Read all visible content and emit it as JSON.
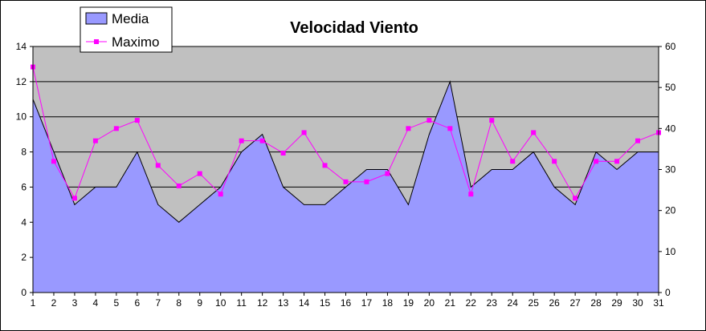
{
  "chart_data": {
    "type": "area",
    "title": "Velocidad Viento",
    "xlabel": "",
    "ylabel": "",
    "x": [
      1,
      2,
      3,
      4,
      5,
      6,
      7,
      8,
      9,
      10,
      11,
      12,
      13,
      14,
      15,
      16,
      17,
      18,
      19,
      20,
      21,
      22,
      23,
      24,
      25,
      26,
      27,
      28,
      29,
      30,
      31
    ],
    "y_left_range": [
      0,
      14
    ],
    "y_left_ticks": [
      0,
      2,
      4,
      6,
      8,
      10,
      12,
      14
    ],
    "y_right_range": [
      0,
      60
    ],
    "y_right_ticks": [
      0,
      10,
      20,
      30,
      40,
      50,
      60
    ],
    "grid": true,
    "legend_position": "top-left",
    "plot_background": "#c0c0c0",
    "series": [
      {
        "name": "Media",
        "type": "area",
        "axis": "left",
        "color": "#9999ff",
        "values": [
          11,
          8,
          5,
          6,
          6,
          8,
          5,
          4,
          5,
          6,
          8,
          9,
          6,
          5,
          5,
          6,
          7,
          7,
          5,
          9,
          12,
          6,
          7,
          7,
          8,
          6,
          5,
          8,
          7,
          8,
          8
        ]
      },
      {
        "name": "Maximo",
        "type": "line",
        "axis": "right",
        "color": "#ff00ff",
        "marker": "square",
        "values": [
          55,
          32,
          23,
          37,
          40,
          42,
          31,
          26,
          29,
          24,
          37,
          37,
          34,
          39,
          31,
          27,
          27,
          29,
          40,
          42,
          40,
          24,
          42,
          32,
          39,
          32,
          23,
          32,
          32,
          37,
          39
        ]
      }
    ]
  }
}
